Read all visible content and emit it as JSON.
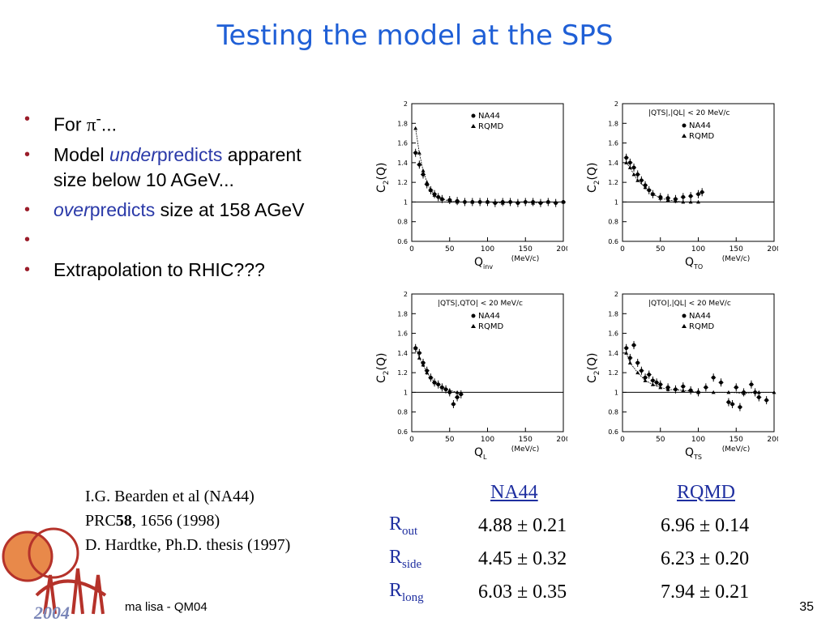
{
  "title": "Testing the model at the SPS",
  "bullets": {
    "b1_prefix": "For ",
    "b1_pi": "π",
    "b1_sup": "-",
    "b1_suffix": "...",
    "b2_prefix": "Model ",
    "b2_em": "under",
    "b2_colored": "predicts",
    "b2_suffix": " apparent size below 10 AGeV...",
    "b3_em": "over",
    "b3_colored": "predicts",
    "b3_suffix": " size at 158 AGeV",
    "b5": "Extrapolation to RHIC???"
  },
  "colors": {
    "title": "#1f5fd6",
    "bullet": "#9b1d2a",
    "emphasis": "#2a39a8",
    "logo_orange": "#e8894a",
    "logo_red": "#b5322a"
  },
  "chart_data": [
    {
      "type": "scatter",
      "panel": "C2(Qinv)",
      "ylabel": "C2(Q)",
      "ylabel_main": "C",
      "ylabel_sub": "2",
      "ylabel_tail": "(Q)",
      "xlabel_main": "Q",
      "xlabel_sub": "inv",
      "xunit": "(MeV/c)",
      "cut": "",
      "legend": [
        "NA44",
        "RQMD"
      ],
      "xlim": [
        0,
        200
      ],
      "ylim": [
        0.6,
        2
      ],
      "xticks": [
        "0",
        "50",
        "100",
        "150",
        "200"
      ],
      "yticks": [
        "0.6",
        "0.8",
        "1",
        "1.2",
        "1.4",
        "1.6",
        "1.8",
        "2"
      ],
      "baseline": 1.0,
      "series": [
        {
          "name": "NA44",
          "x": [
            5,
            10,
            15,
            20,
            25,
            30,
            35,
            40,
            50,
            60,
            70,
            80,
            90,
            100,
            110,
            120,
            130,
            140,
            150,
            160,
            170,
            180,
            190,
            200
          ],
          "y": [
            1.5,
            1.38,
            1.28,
            1.18,
            1.12,
            1.08,
            1.05,
            1.03,
            1.02,
            1.01,
            1.0,
            1.0,
            1.0,
            1.0,
            0.99,
            1.0,
            1.0,
            0.99,
            1.0,
            1.0,
            0.99,
            1.0,
            0.99,
            1.0
          ]
        },
        {
          "name": "RQMD",
          "x": [
            5,
            10,
            15,
            20,
            25,
            30,
            40,
            50,
            60,
            80,
            100,
            120,
            140,
            160,
            180,
            200
          ],
          "y": [
            1.75,
            1.5,
            1.32,
            1.2,
            1.12,
            1.07,
            1.03,
            1.01,
            1.0,
            1.0,
            1.0,
            0.99,
            1.0,
            0.99,
            1.0,
            1.0
          ]
        }
      ]
    },
    {
      "type": "scatter",
      "panel": "C2(QTO)",
      "ylabel": "C2(Q)",
      "ylabel_main": "C",
      "ylabel_sub": "2",
      "ylabel_tail": "(Q)",
      "xlabel_main": "Q",
      "xlabel_sub": "TO",
      "xunit": "(MeV/c)",
      "cut": "|QTS|,|QL| < 20 MeV/c",
      "legend": [
        "NA44",
        "RQMD"
      ],
      "xlim": [
        0,
        200
      ],
      "ylim": [
        0.6,
        2
      ],
      "xticks": [
        "0",
        "50",
        "100",
        "150",
        "200"
      ],
      "yticks": [
        "0.6",
        "0.8",
        "1",
        "1.2",
        "1.4",
        "1.6",
        "1.8",
        "2"
      ],
      "baseline": 1.0,
      "series": [
        {
          "name": "NA44",
          "x": [
            5,
            10,
            15,
            20,
            25,
            30,
            35,
            40,
            50,
            60,
            70,
            80,
            90,
            100,
            105
          ],
          "y": [
            1.45,
            1.4,
            1.35,
            1.28,
            1.22,
            1.17,
            1.12,
            1.08,
            1.05,
            1.04,
            1.03,
            1.05,
            1.06,
            1.08,
            1.1
          ]
        },
        {
          "name": "RQMD",
          "x": [
            5,
            10,
            15,
            20,
            30,
            40,
            50,
            60,
            70,
            80,
            90,
            100
          ],
          "y": [
            1.4,
            1.35,
            1.28,
            1.22,
            1.15,
            1.08,
            1.04,
            1.02,
            1.01,
            1.0,
            1.0,
            1.0
          ]
        }
      ]
    },
    {
      "type": "scatter",
      "panel": "C2(QL)",
      "ylabel": "C2(Q)",
      "ylabel_main": "C",
      "ylabel_sub": "2",
      "ylabel_tail": "(Q)",
      "xlabel_main": "Q",
      "xlabel_sub": "L",
      "xunit": "(MeV/c)",
      "cut": "|QTS|,QTO| < 20 MeV/c",
      "legend": [
        "NA44",
        "RQMD"
      ],
      "xlim": [
        0,
        200
      ],
      "ylim": [
        0.6,
        2
      ],
      "xticks": [
        "0",
        "50",
        "100",
        "150",
        "200"
      ],
      "yticks": [
        "0.6",
        "0.8",
        "1",
        "1.2",
        "1.4",
        "1.6",
        "1.8",
        "2"
      ],
      "baseline": 1.0,
      "series": [
        {
          "name": "NA44",
          "x": [
            5,
            10,
            15,
            20,
            25,
            30,
            35,
            40,
            45,
            50,
            55,
            60,
            65
          ],
          "y": [
            1.45,
            1.4,
            1.3,
            1.22,
            1.15,
            1.1,
            1.08,
            1.05,
            1.03,
            1.0,
            0.88,
            0.95,
            0.98
          ]
        },
        {
          "name": "RQMD",
          "x": [
            5,
            10,
            15,
            20,
            25,
            30,
            40,
            50,
            60
          ],
          "y": [
            1.45,
            1.35,
            1.28,
            1.2,
            1.15,
            1.1,
            1.05,
            1.02,
            1.0
          ]
        }
      ]
    },
    {
      "type": "scatter",
      "panel": "C2(QTS)",
      "ylabel": "C2(Q)",
      "ylabel_main": "C",
      "ylabel_sub": "2",
      "ylabel_tail": "(Q)",
      "xlabel_main": "Q",
      "xlabel_sub": "TS",
      "xunit": "(MeV/c)",
      "cut": "|QTO|,|QL| < 20 MeV/c",
      "legend": [
        "NA44",
        "RQMD"
      ],
      "xlim": [
        0,
        200
      ],
      "ylim": [
        0.6,
        2
      ],
      "xticks": [
        "0",
        "50",
        "100",
        "150",
        "200"
      ],
      "yticks": [
        "0.6",
        "0.8",
        "1",
        "1.2",
        "1.4",
        "1.6",
        "1.8",
        "2"
      ],
      "baseline": 1.0,
      "series": [
        {
          "name": "NA44",
          "x": [
            5,
            10,
            15,
            20,
            25,
            30,
            35,
            40,
            45,
            50,
            60,
            70,
            80,
            90,
            100,
            110,
            120,
            130,
            140,
            145,
            150,
            155,
            160,
            170,
            175,
            180,
            190
          ],
          "y": [
            1.45,
            1.35,
            1.48,
            1.3,
            1.22,
            1.15,
            1.18,
            1.12,
            1.1,
            1.08,
            1.05,
            1.03,
            1.06,
            1.02,
            1.0,
            1.05,
            1.15,
            1.1,
            0.9,
            0.88,
            1.05,
            0.85,
            1.0,
            1.08,
            1.0,
            0.95,
            0.92
          ]
        },
        {
          "name": "RQMD",
          "x": [
            5,
            10,
            20,
            30,
            40,
            50,
            60,
            80,
            100,
            120,
            140,
            160,
            180,
            200
          ],
          "y": [
            1.4,
            1.3,
            1.2,
            1.12,
            1.08,
            1.05,
            1.03,
            1.02,
            1.0,
            1.0,
            1.0,
            0.99,
            1.0,
            1.0
          ]
        }
      ]
    }
  ],
  "reference": {
    "line1": "I.G. Bearden et al (NA44)",
    "line2_prefix": "PRC",
    "line2_bold": "58",
    "line2_suffix": ", 1656 (1998)",
    "line3": "D. Hardtke, Ph.D. thesis (1997)"
  },
  "results": {
    "headers": [
      "NA44",
      "RQMD"
    ],
    "rows": [
      {
        "label": "R",
        "sub": "out",
        "na44": "4.88 ± 0.21",
        "rqmd": "6.96 ± 0.14"
      },
      {
        "label": "R",
        "sub": "side",
        "na44": "4.45 ± 0.32",
        "rqmd": "6.23 ± 0.20"
      },
      {
        "label": "R",
        "sub": "long",
        "na44": "6.03 ± 0.35",
        "rqmd": "7.94 ± 0.21"
      }
    ]
  },
  "logo": {
    "year": "2004"
  },
  "footer": {
    "author": "ma lisa - QM04",
    "page": "35"
  }
}
